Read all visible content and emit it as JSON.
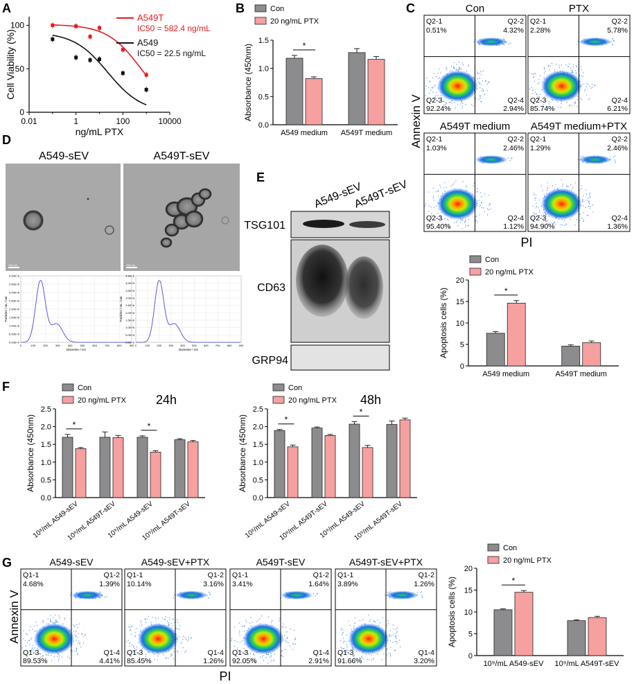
{
  "colors": {
    "red": "#e8191b",
    "black": "#111111",
    "gray": "#8c8c8e",
    "pink": "#f6a0a0",
    "frame": "#000000"
  },
  "panel_labels": [
    "A",
    "B",
    "C",
    "D",
    "E",
    "F",
    "G"
  ],
  "chart_data": [
    {
      "id": "A",
      "type": "scatter",
      "title": "",
      "xlabel": "ng/mL PTX",
      "ylabel": "Cell Viability (%)",
      "xscale": "log",
      "xlim": [
        0.01,
        10000
      ],
      "ylim": [
        0,
        110
      ],
      "xticks": [
        "0.01",
        "1",
        "100",
        "10000"
      ],
      "yticks": [
        "0",
        "50",
        "100"
      ],
      "series": [
        {
          "name": "A549T",
          "ic50_label": "IC50 = 582.4 ng/mL",
          "color": "#e8191b",
          "x": [
            0.1,
            1,
            4,
            10,
            100,
            1000
          ],
          "y": [
            100,
            99,
            87,
            97,
            72,
            43
          ]
        },
        {
          "name": "A549",
          "ic50_label": "IC50 = 22.5 ng/mL",
          "color": "#111111",
          "x": [
            0.1,
            1,
            4,
            10,
            100,
            1000
          ],
          "y": [
            84,
            63,
            60,
            61,
            45,
            26
          ]
        }
      ]
    },
    {
      "id": "B",
      "type": "bar",
      "title": "",
      "categories": [
        "A549 medium",
        "A549T medium"
      ],
      "series": [
        {
          "name": "Con",
          "values": [
            1.18,
            1.28
          ],
          "errors": [
            0.05,
            0.07
          ]
        },
        {
          "name": "20 ng/mL PTX",
          "values": [
            0.82,
            1.16
          ],
          "errors": [
            0.03,
            0.05
          ]
        }
      ],
      "xlabel": "",
      "ylabel": "Absorbance (450nm)",
      "ylim": [
        0,
        1.5
      ],
      "yticks": [
        "0.0",
        "0.5",
        "1.0",
        "1.5"
      ],
      "significance": [
        "*",
        ""
      ]
    },
    {
      "id": "C-bar",
      "type": "bar",
      "title": "",
      "categories": [
        "A549 medium",
        "A549T medium"
      ],
      "series": [
        {
          "name": "Con",
          "values": [
            7.6,
            4.6
          ],
          "errors": [
            0.4,
            0.3
          ]
        },
        {
          "name": "20 ng/mL PTX",
          "values": [
            14.6,
            5.4
          ],
          "errors": [
            0.6,
            0.4
          ]
        }
      ],
      "xlabel": "",
      "ylabel": "Apoptosis cells (%)",
      "ylim": [
        0,
        20
      ],
      "yticks": [
        "0",
        "5",
        "10",
        "15",
        "20"
      ],
      "significance": [
        "*",
        ""
      ]
    },
    {
      "id": "F-24h",
      "type": "bar",
      "title": "24h",
      "categories": [
        "10⁸/mL A549-sEV",
        "10⁸/mL A549T-sEV",
        "10⁹/mL A549-sEV",
        "10⁹/mL A549T-sEV"
      ],
      "series": [
        {
          "name": "Con",
          "values": [
            1.7,
            1.7,
            1.7,
            1.63
          ],
          "errors": [
            0.08,
            0.15,
            0.04,
            0.03
          ]
        },
        {
          "name": "20 ng/mL PTX",
          "values": [
            1.38,
            1.69,
            1.28,
            1.57
          ],
          "errors": [
            0.03,
            0.06,
            0.04,
            0.04
          ]
        }
      ],
      "xlabel": "",
      "ylabel": "Absorbance (450nm)",
      "ylim": [
        0,
        2.5
      ],
      "yticks": [
        "0.0",
        "0.5",
        "1.0",
        "1.5",
        "2.0",
        "2.5"
      ],
      "significance": [
        "*",
        "",
        "*",
        ""
      ]
    },
    {
      "id": "F-48h",
      "type": "bar",
      "title": "48h",
      "categories": [
        "10⁸/mL A549-sEV",
        "10⁸/mL A549T-sEV",
        "10⁹/mL A549-sEV",
        "10⁹/mL A549T-sEV"
      ],
      "series": [
        {
          "name": "Con",
          "values": [
            1.89,
            1.96,
            2.07,
            2.06
          ],
          "errors": [
            0.03,
            0.03,
            0.07,
            0.1
          ]
        },
        {
          "name": "20 ng/mL PTX",
          "values": [
            1.43,
            1.75,
            1.41,
            2.19
          ],
          "errors": [
            0.05,
            0.03,
            0.06,
            0.05
          ]
        }
      ],
      "xlabel": "",
      "ylabel": "Absorbance (450nm)",
      "ylim": [
        0,
        2.5
      ],
      "yticks": [
        "0.0",
        "0.5",
        "1.0",
        "1.5",
        "2.0",
        "2.5"
      ],
      "significance": [
        "*",
        "",
        "*",
        ""
      ]
    },
    {
      "id": "G-bar",
      "type": "bar",
      "title": "",
      "categories": [
        "10⁹/mL A549-sEV",
        "10⁹/mL A549T-sEV"
      ],
      "series": [
        {
          "name": "Con",
          "values": [
            10.5,
            8.0
          ],
          "errors": [
            0.2,
            0.2
          ]
        },
        {
          "name": "20 ng/mL PTX",
          "values": [
            14.5,
            8.7
          ],
          "errors": [
            0.4,
            0.3
          ]
        }
      ],
      "xlabel": "",
      "ylabel": "Apoptosis cells (%)",
      "ylim": [
        0,
        20
      ],
      "yticks": [
        "0",
        "5",
        "10",
        "15",
        "20"
      ],
      "significance": [
        "*",
        ""
      ]
    },
    {
      "id": "D-nta",
      "type": "line",
      "title": "",
      "xlabel": "Diameter / nm",
      "ylabel": "Particles / mL / nm",
      "panels": [
        {
          "name": "A549-sEV",
          "peak_nm": 160,
          "yticks": [
            "0.00E+0",
            "5.00E+5",
            "1.00E+6",
            "1.50E+6",
            "2.00E+6",
            "2.50E+6",
            "3.00E+6",
            "3.50E+6",
            "4.00E+6"
          ]
        },
        {
          "name": "A549T-sEV",
          "peak_nm": 200,
          "yticks": [
            "0.0E+0",
            "5.0E+5",
            "1.0E+6",
            "1.5E+6",
            "2.0E+6",
            "2.5E+6",
            "3.0E+6",
            "3.5E+6",
            "4.0E+6",
            "4.5E+6"
          ]
        }
      ],
      "xticks": [
        "0",
        "100",
        "200",
        "300",
        "400",
        "500",
        "600",
        "700",
        "800",
        "900"
      ]
    }
  ],
  "flow_C": {
    "axis_x": "PI",
    "axis_y": "Annexin V",
    "plots": [
      {
        "title": "Con",
        "q1": "Q2-1",
        "v1": "0.51%",
        "q2": "Q2-2",
        "v2": "4.32%",
        "q3": "Q2-3",
        "v3": "92.24%",
        "q4": "Q2-4",
        "v4": "2.94%"
      },
      {
        "title": "PTX",
        "q1": "Q2-1",
        "v1": "2.28%",
        "q2": "Q2-2",
        "v2": "5.78%",
        "q3": "Q2-3",
        "v3": "85.74%",
        "q4": "Q2-4",
        "v4": "6.21%"
      },
      {
        "title": "A549T medium",
        "q1": "Q2-1",
        "v1": "1.03%",
        "q2": "Q2-2",
        "v2": "2.46%",
        "q3": "Q2-3",
        "v3": "95.40%",
        "q4": "Q2-4",
        "v4": "1.12%"
      },
      {
        "title": "A549T medium+PTX",
        "q1": "Q2-1",
        "v1": "1.29%",
        "q2": "Q2-2",
        "v2": "2.46%",
        "q3": "Q2-3",
        "v3": "94.90%",
        "q4": "Q2-4",
        "v4": "1.36%"
      }
    ]
  },
  "flow_G": {
    "axis_x": "PI",
    "axis_y": "Annexin V",
    "plots": [
      {
        "title": "A549-sEV",
        "q1": "Q1-1",
        "v1": "4.68%",
        "q2": "Q1-2",
        "v2": "1.39%",
        "q3": "Q1-3",
        "v3": "89.53%",
        "q4": "Q1-4",
        "v4": "4.41%"
      },
      {
        "title": "A549-sEV+PTX",
        "q1": "Q1-1",
        "v1": "10.14%",
        "q2": "Q1-2",
        "v2": "3.16%",
        "q3": "Q1-3",
        "v3": "85.45%",
        "q4": "Q1-4",
        "v4": "1.26%"
      },
      {
        "title": "A549T-sEV",
        "q1": "Q1-1",
        "v1": "3.41%",
        "q2": "Q1-2",
        "v2": "1.64%",
        "q3": "Q1-3",
        "v3": "92.05%",
        "q4": "Q1-4",
        "v4": "2.91%"
      },
      {
        "title": "A549T-sEV+PTX",
        "q1": "Q1-1",
        "v1": "3.89%",
        "q2": "Q1-2",
        "v2": "1.26%",
        "q3": "Q1-3",
        "v3": "91.66%",
        "q4": "Q1-4",
        "v4": "3.20%"
      }
    ]
  },
  "tem_D": {
    "titles": [
      "A549-sEV",
      "A549T-sEV"
    ],
    "scale_bar": "100 nm"
  },
  "blot_E": {
    "lanes": [
      "A549-sEV",
      "A549T-sEV"
    ],
    "rows": [
      "TSG101",
      "CD63",
      "GRP94"
    ]
  }
}
